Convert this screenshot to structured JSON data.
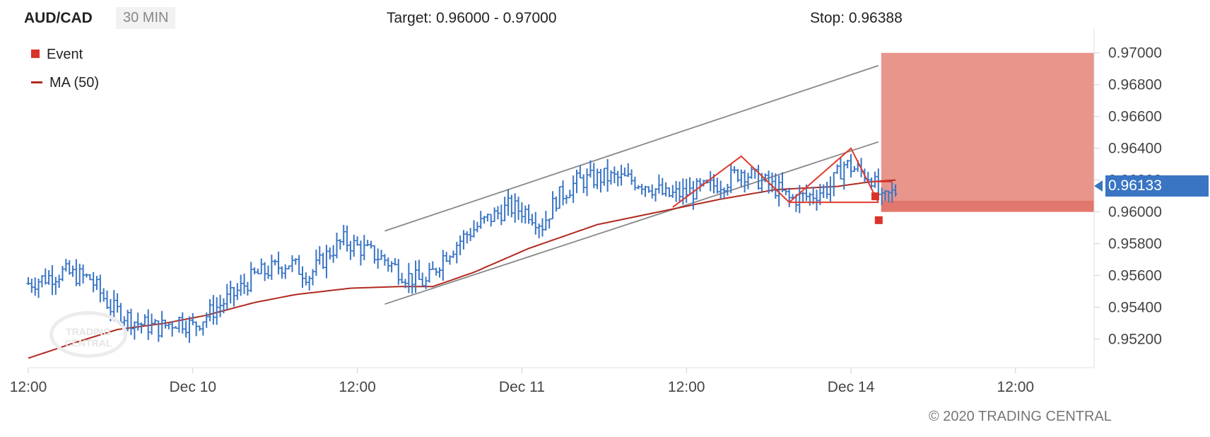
{
  "header": {
    "symbol": "AUD/CAD",
    "interval": "30 MIN",
    "target": "Target: 0.96000 - 0.97000",
    "stop": "Stop: 0.96388"
  },
  "legend": {
    "event": "Event",
    "ma": "MA (50)"
  },
  "last_price": "0.96133",
  "copyright": "© 2020 TRADING CENTRAL",
  "watermark": "TRADING CENTRAL",
  "colors": {
    "bar": "#3a75c4",
    "ma": "#b22a20",
    "event": "#d9342b",
    "pattern": "#e0392d",
    "channel": "#888888",
    "target_zone": "#e8958c",
    "target_zone_low": "#e2786d"
  },
  "chart_data": {
    "type": "ohlc",
    "y_ticks": [
      "0.97000",
      "0.96800",
      "0.96600",
      "0.96400",
      "0.96200",
      "0.96000",
      "0.95800",
      "0.95600",
      "0.95400",
      "0.95200"
    ],
    "y_tick_values": [
      0.97,
      0.968,
      0.966,
      0.964,
      0.962,
      0.96,
      0.958,
      0.956,
      0.954,
      0.952
    ],
    "ylim": [
      0.9502,
      0.9711
    ],
    "x_ticks": [
      "12:00",
      "Dec 10",
      "12:00",
      "Dec 11",
      "12:00",
      "Dec 14",
      "12:00"
    ],
    "x_tick_bars": [
      0,
      48,
      96,
      144,
      192,
      240,
      288
    ],
    "bar_count": 300,
    "price_waypoints": [
      [
        0,
        0.9555
      ],
      [
        10,
        0.9562
      ],
      [
        18,
        0.9558
      ],
      [
        24,
        0.954
      ],
      [
        32,
        0.953
      ],
      [
        38,
        0.9527
      ],
      [
        44,
        0.9532
      ],
      [
        48,
        0.9528
      ],
      [
        55,
        0.954
      ],
      [
        60,
        0.9548
      ],
      [
        66,
        0.956
      ],
      [
        76,
        0.9568
      ],
      [
        82,
        0.956
      ],
      [
        88,
        0.9575
      ],
      [
        92,
        0.9582
      ],
      [
        96,
        0.9578
      ],
      [
        104,
        0.957
      ],
      [
        110,
        0.956
      ],
      [
        116,
        0.9555
      ],
      [
        121,
        0.9572
      ],
      [
        128,
        0.9586
      ],
      [
        133,
        0.9594
      ],
      [
        140,
        0.9603
      ],
      [
        146,
        0.96
      ],
      [
        150,
        0.9592
      ],
      [
        154,
        0.9608
      ],
      [
        160,
        0.9619
      ],
      [
        168,
        0.9622
      ],
      [
        176,
        0.962
      ],
      [
        181,
        0.9617
      ],
      [
        186,
        0.961
      ],
      [
        192,
        0.9612
      ],
      [
        198,
        0.9615
      ],
      [
        204,
        0.962
      ],
      [
        208,
        0.9626
      ],
      [
        212,
        0.9621
      ],
      [
        218,
        0.9615
      ],
      [
        222,
        0.9608
      ],
      [
        228,
        0.961
      ],
      [
        234,
        0.9616
      ],
      [
        238,
        0.963
      ],
      [
        242,
        0.9626
      ],
      [
        246,
        0.9622
      ],
      [
        249,
        0.9606
      ],
      [
        251,
        0.961
      ],
      [
        253,
        0.9613
      ]
    ],
    "ma_waypoints": [
      [
        0,
        0.9508
      ],
      [
        14,
        0.9518
      ],
      [
        26,
        0.9526
      ],
      [
        40,
        0.953
      ],
      [
        52,
        0.9535
      ],
      [
        66,
        0.9543
      ],
      [
        78,
        0.9548
      ],
      [
        94,
        0.9552
      ],
      [
        108,
        0.9553
      ],
      [
        118,
        0.9553
      ],
      [
        130,
        0.9562
      ],
      [
        146,
        0.9577
      ],
      [
        166,
        0.9592
      ],
      [
        184,
        0.96
      ],
      [
        202,
        0.9608
      ],
      [
        218,
        0.9614
      ],
      [
        236,
        0.9616
      ],
      [
        246,
        0.9619
      ],
      [
        253,
        0.962
      ]
    ],
    "channel_upper": [
      [
        104,
        0.9588
      ],
      [
        248,
        0.9692
      ]
    ],
    "channel_lower": [
      [
        104,
        0.9542
      ],
      [
        248,
        0.9644
      ]
    ],
    "pattern_lines": [
      [
        [
          188,
          0.9603
        ],
        [
          208,
          0.9635
        ],
        [
          222,
          0.9606
        ],
        [
          240,
          0.964
        ],
        [
          248,
          0.9606
        ]
      ],
      [
        [
          222,
          0.9606
        ],
        [
          248,
          0.9606
        ]
      ],
      [
        [
          246,
          0.9619
        ],
        [
          252,
          0.9619
        ]
      ]
    ],
    "events": [
      [
        247,
        0.961
      ],
      [
        248,
        0.9595
      ]
    ],
    "target_zone": {
      "from_bar": 248,
      "low": 0.96,
      "high": 0.97
    },
    "last_price": 0.96133
  }
}
